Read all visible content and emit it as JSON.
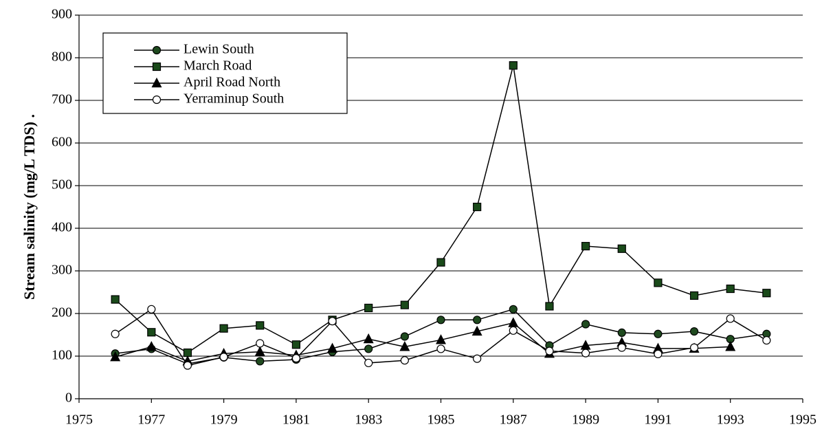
{
  "chart_data": {
    "type": "line",
    "y_label": "Stream salinity (mg/L TDS) .",
    "x": [
      1976,
      1977,
      1978,
      1979,
      1980,
      1981,
      1982,
      1983,
      1984,
      1985,
      1986,
      1987,
      1988,
      1989,
      1990,
      1991,
      1992,
      1993,
      1994
    ],
    "series": [
      {
        "name": "Lewin South",
        "color": "#1f4a1f",
        "marker": "circle",
        "values": [
          106,
          117,
          82,
          97,
          88,
          92,
          110,
          117,
          146,
          185,
          185,
          210,
          125,
          175,
          155,
          152,
          158,
          140,
          152
        ]
      },
      {
        "name": "March Road",
        "color": "#1a4a1a",
        "marker": "square",
        "values": [
          233,
          156,
          108,
          165,
          172,
          127,
          185,
          213,
          220,
          320,
          450,
          782,
          217,
          358,
          352,
          272,
          242,
          258,
          248
        ]
      },
      {
        "name": "April Road North",
        "color": "#000000",
        "marker": "triangle",
        "values": [
          98,
          122,
          88,
          106,
          110,
          102,
          118,
          140,
          122,
          138,
          158,
          178,
          106,
          125,
          132,
          118,
          118,
          122,
          null
        ]
      },
      {
        "name": "Yerraminup South",
        "color": "#ffffff",
        "marker": "circle",
        "values": [
          152,
          210,
          78,
          98,
          130,
          95,
          182,
          84,
          90,
          117,
          94,
          160,
          112,
          107,
          120,
          105,
          120,
          188,
          137
        ]
      }
    ],
    "xlim": [
      1975,
      1995
    ],
    "xticks": [
      1975,
      1977,
      1979,
      1981,
      1983,
      1985,
      1987,
      1989,
      1991,
      1993,
      1995
    ],
    "ylim": [
      0,
      900
    ],
    "yticks": [
      0,
      100,
      200,
      300,
      400,
      500,
      600,
      700,
      800,
      900
    ],
    "grid": true,
    "legend": "upper left"
  }
}
